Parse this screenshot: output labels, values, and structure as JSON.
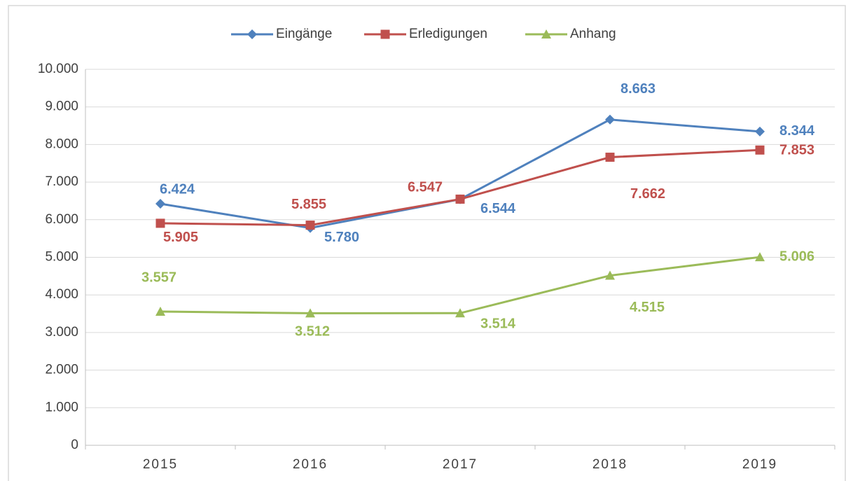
{
  "chart_data": {
    "type": "line",
    "categories": [
      "2015",
      "2016",
      "2017",
      "2018",
      "2019"
    ],
    "series": [
      {
        "name": "Eingänge",
        "color": "#4f81bd",
        "marker": "diamond",
        "values": [
          6424,
          5780,
          6544,
          8663,
          8344
        ],
        "value_labels": [
          "6.424",
          "5.780",
          "6.544",
          "8.663",
          "8.344"
        ]
      },
      {
        "name": "Erledigungen",
        "color": "#c0504d",
        "marker": "square",
        "values": [
          5905,
          5855,
          6547,
          7662,
          7853
        ],
        "value_labels": [
          "5.905",
          "5.855",
          "6.547",
          "7.662",
          "7.853"
        ]
      },
      {
        "name": "Anhang",
        "color": "#9bbb59",
        "marker": "triangle",
        "values": [
          3557,
          3512,
          3514,
          4515,
          5006
        ],
        "value_labels": [
          "3.557",
          "3.512",
          "3.514",
          "4.515",
          "5.006"
        ]
      }
    ],
    "ylim": [
      0,
      10000
    ],
    "yticks": [
      0,
      {
        "value": 1000,
        "label": "1.000"
      },
      {
        "value": 2000,
        "label": "2.000"
      },
      {
        "value": 3000,
        "label": "3.000"
      },
      {
        "value": 4000,
        "label": "4.000"
      },
      {
        "value": 5000,
        "label": "5.000"
      },
      {
        "value": 6000,
        "label": "6.000"
      },
      {
        "value": 7000,
        "label": "7.000"
      },
      {
        "value": 8000,
        "label": "8.000"
      },
      {
        "value": 9000,
        "label": "9.000"
      },
      {
        "value": 10000,
        "label": "10.000"
      }
    ],
    "grid": true,
    "legend": "top"
  }
}
